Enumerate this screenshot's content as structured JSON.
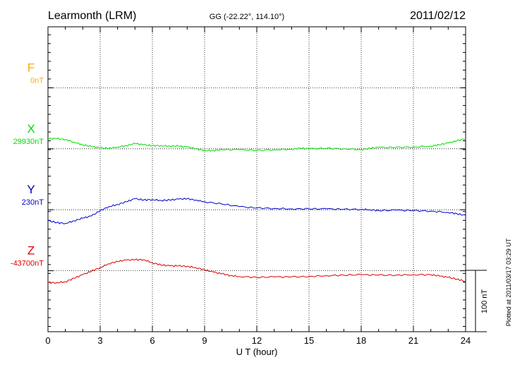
{
  "header": {
    "station": "Learmonth (LRM)",
    "coords": "GG (-22.22°, 114.10°)",
    "date": "2011/02/12"
  },
  "footer": {
    "plotted_note": "Plotted at 2011/03/17 03:29 UT"
  },
  "chart_data": {
    "type": "line",
    "xlabel": "U T (hour)",
    "xlim": [
      0,
      24
    ],
    "x_ticks": [
      0,
      3,
      6,
      9,
      12,
      15,
      18,
      21,
      24
    ],
    "y_range_nT": 690,
    "scale_bar": {
      "label": "100 nT",
      "value_nT": 100
    },
    "series": [
      {
        "name": "F",
        "baseline_label": "0nT",
        "baseline_value": 0,
        "color": "#ffaa00",
        "x": [],
        "values": []
      },
      {
        "name": "X",
        "baseline_label": "29930nT",
        "baseline_value": 29930,
        "color": "#00dd00",
        "x": [
          0,
          0.5,
          1,
          1.5,
          2,
          2.5,
          3,
          3.5,
          4,
          4.5,
          5,
          5.5,
          6,
          6.5,
          7,
          7.5,
          8,
          8.5,
          9,
          9.5,
          10,
          11,
          12,
          13,
          14,
          14.5,
          15,
          16,
          17,
          18,
          18.5,
          19,
          20,
          21,
          22,
          22.5,
          23,
          23.5,
          24
        ],
        "values": [
          29953,
          29953,
          29951,
          29945,
          29939,
          29935,
          29932,
          29931,
          29934,
          29937,
          29942,
          29939,
          29937,
          29937,
          29936,
          29936,
          29934,
          29930,
          29926,
          29926,
          29928,
          29928,
          29926,
          29928,
          29929,
          29931,
          29930,
          29931,
          29930,
          29928,
          29931,
          29933,
          29933,
          29934,
          29936,
          29939,
          29943,
          29948,
          29953
        ]
      },
      {
        "name": "Y",
        "baseline_label": "230nT",
        "baseline_value": 230,
        "color": "#0000cc",
        "x": [
          0,
          0.5,
          1,
          1.5,
          2,
          2.5,
          3,
          3.5,
          4,
          4.5,
          5,
          5.5,
          6,
          6.5,
          7,
          7.5,
          8,
          8.5,
          9,
          10,
          11,
          12,
          13,
          14,
          15,
          16,
          17,
          18,
          18.5,
          19,
          20,
          21,
          22,
          23,
          23.5,
          24
        ],
        "values": [
          205,
          201,
          199,
          205,
          211,
          216,
          228,
          237,
          242,
          248,
          255,
          252,
          253,
          251,
          252,
          254,
          255,
          252,
          248,
          243,
          237,
          234,
          233,
          232,
          232,
          232,
          231,
          231,
          230,
          228,
          229,
          228,
          227,
          224,
          221,
          217
        ]
      },
      {
        "name": "Z",
        "baseline_label": "-43700nT",
        "baseline_value": -43700,
        "color": "#dd0000",
        "x": [
          0,
          0.5,
          1,
          1.5,
          2,
          2.5,
          3,
          3.5,
          4,
          4.5,
          5,
          5.5,
          6,
          6.5,
          7,
          7.5,
          8,
          8.5,
          9,
          9.5,
          10,
          10.5,
          11,
          12,
          13,
          14,
          15,
          16,
          17,
          18,
          19,
          20,
          21,
          22,
          22.5,
          23,
          23.5,
          24
        ],
        "values": [
          -43727,
          -43727,
          -43725,
          -43717,
          -43709,
          -43701,
          -43693,
          -43684,
          -43679,
          -43676,
          -43675,
          -43675,
          -43682,
          -43687,
          -43689,
          -43689,
          -43690,
          -43693,
          -43698,
          -43703,
          -43707,
          -43711,
          -43713,
          -43715,
          -43714,
          -43714,
          -43713,
          -43711,
          -43710,
          -43709,
          -43710,
          -43710,
          -43709,
          -43709,
          -43712,
          -43715,
          -43719,
          -43724
        ]
      }
    ]
  }
}
